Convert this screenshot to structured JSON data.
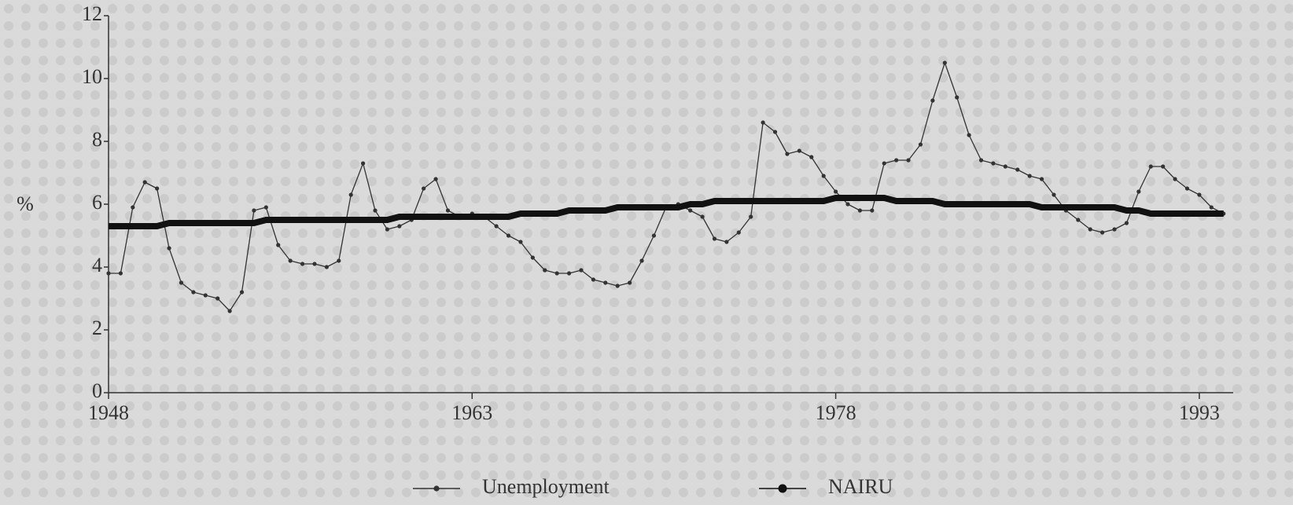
{
  "chart_data": {
    "type": "line",
    "ylabel": "%",
    "x": [
      1948,
      1948.5,
      1949,
      1949.5,
      1950,
      1950.5,
      1951,
      1951.5,
      1952,
      1952.5,
      1953,
      1953.5,
      1954,
      1954.5,
      1955,
      1955.5,
      1956,
      1956.5,
      1957,
      1957.5,
      1958,
      1958.5,
      1959,
      1959.5,
      1960,
      1960.5,
      1961,
      1961.5,
      1962,
      1962.5,
      1963,
      1963.5,
      1964,
      1964.5,
      1965,
      1965.5,
      1966,
      1966.5,
      1967,
      1967.5,
      1968,
      1968.5,
      1969,
      1969.5,
      1970,
      1970.5,
      1971,
      1971.5,
      1972,
      1972.5,
      1973,
      1973.5,
      1974,
      1974.5,
      1975,
      1975.5,
      1976,
      1976.5,
      1977,
      1977.5,
      1978,
      1978.5,
      1979,
      1979.5,
      1980,
      1980.5,
      1981,
      1981.5,
      1982,
      1982.5,
      1983,
      1983.5,
      1984,
      1984.5,
      1985,
      1985.5,
      1986,
      1986.5,
      1987,
      1987.5,
      1988,
      1988.5,
      1989,
      1989.5,
      1990,
      1990.5,
      1991,
      1991.5,
      1992,
      1992.5,
      1993,
      1993.5,
      1994
    ],
    "series": [
      {
        "name": "Unemployment",
        "color": "#333333",
        "values": [
          3.8,
          3.8,
          5.9,
          6.7,
          6.5,
          4.6,
          3.5,
          3.2,
          3.1,
          3.0,
          2.6,
          3.2,
          5.8,
          5.9,
          4.7,
          4.2,
          4.1,
          4.1,
          4.0,
          4.2,
          6.3,
          7.3,
          5.8,
          5.2,
          5.3,
          5.5,
          6.5,
          6.8,
          5.8,
          5.6,
          5.7,
          5.6,
          5.3,
          5.0,
          4.8,
          4.3,
          3.9,
          3.8,
          3.8,
          3.9,
          3.6,
          3.5,
          3.4,
          3.5,
          4.2,
          5.0,
          5.9,
          6.0,
          5.8,
          5.6,
          4.9,
          4.8,
          5.1,
          5.6,
          8.6,
          8.3,
          7.6,
          7.7,
          7.5,
          6.9,
          6.4,
          6.0,
          5.8,
          5.8,
          7.3,
          7.4,
          7.4,
          7.9,
          9.3,
          10.5,
          9.4,
          8.2,
          7.4,
          7.3,
          7.2,
          7.1,
          6.9,
          6.8,
          6.3,
          5.8,
          5.5,
          5.2,
          5.1,
          5.2,
          5.4,
          6.4,
          7.2,
          7.2,
          6.8,
          6.5,
          6.3,
          5.9,
          5.7
        ]
      },
      {
        "name": "NAIRU",
        "color": "#111111",
        "values": [
          5.3,
          5.3,
          5.3,
          5.3,
          5.3,
          5.4,
          5.4,
          5.4,
          5.4,
          5.4,
          5.4,
          5.4,
          5.4,
          5.5,
          5.5,
          5.5,
          5.5,
          5.5,
          5.5,
          5.5,
          5.5,
          5.5,
          5.5,
          5.5,
          5.6,
          5.6,
          5.6,
          5.6,
          5.6,
          5.6,
          5.6,
          5.6,
          5.6,
          5.6,
          5.7,
          5.7,
          5.7,
          5.7,
          5.8,
          5.8,
          5.8,
          5.8,
          5.9,
          5.9,
          5.9,
          5.9,
          5.9,
          5.9,
          6.0,
          6.0,
          6.1,
          6.1,
          6.1,
          6.1,
          6.1,
          6.1,
          6.1,
          6.1,
          6.1,
          6.1,
          6.2,
          6.2,
          6.2,
          6.2,
          6.2,
          6.1,
          6.1,
          6.1,
          6.1,
          6.0,
          6.0,
          6.0,
          6.0,
          6.0,
          6.0,
          6.0,
          6.0,
          5.9,
          5.9,
          5.9,
          5.9,
          5.9,
          5.9,
          5.9,
          5.8,
          5.8,
          5.7,
          5.7,
          5.7,
          5.7,
          5.7,
          5.7,
          5.7
        ]
      }
    ],
    "xlim": [
      1948,
      1994.4
    ],
    "xticks": [
      1948,
      1963,
      1978,
      1993
    ],
    "ylim": [
      0,
      12
    ],
    "yticks": [
      0,
      2,
      4,
      6,
      8,
      10,
      12
    ],
    "legend": "bottom"
  }
}
